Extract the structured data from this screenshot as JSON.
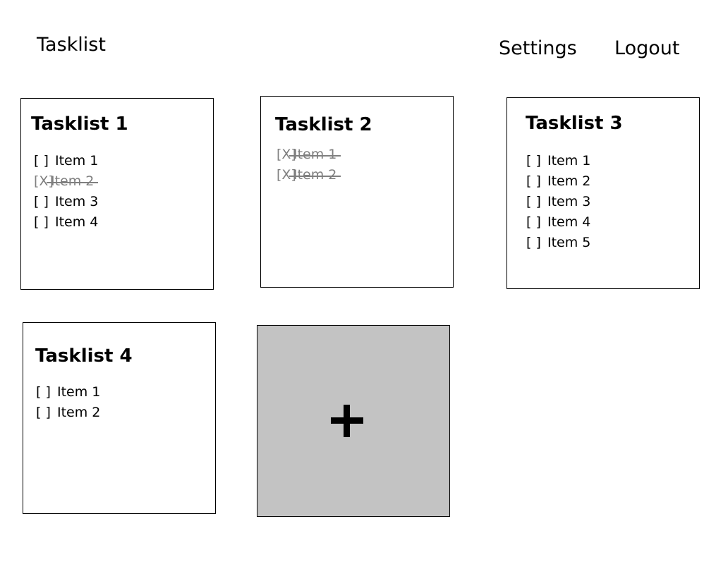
{
  "header": {
    "title": "Tasklist",
    "settings_label": "Settings",
    "logout_label": "Logout"
  },
  "tasklists": [
    {
      "title": "Tasklist 1",
      "items": [
        {
          "box": "[ ]",
          "label": "Item 1",
          "done": false
        },
        {
          "box": "[X]",
          "label": "Item 2",
          "done": true
        },
        {
          "box": "[ ]",
          "label": "Item 3",
          "done": false
        },
        {
          "box": "[ ]",
          "label": "Item 4",
          "done": false
        }
      ]
    },
    {
      "title": "Tasklist 2",
      "items": [
        {
          "box": "[X]",
          "label": "Item 1",
          "done": true
        },
        {
          "box": "[X]",
          "label": "Item 2",
          "done": true
        }
      ]
    },
    {
      "title": "Tasklist 3",
      "items": [
        {
          "box": "[ ]",
          "label": "Item 1",
          "done": false
        },
        {
          "box": "[ ]",
          "label": "Item 2",
          "done": false
        },
        {
          "box": "[ ]",
          "label": "Item 3",
          "done": false
        },
        {
          "box": "[ ]",
          "label": "Item 4",
          "done": false
        },
        {
          "box": "[ ]",
          "label": "Item 5",
          "done": false
        }
      ]
    },
    {
      "title": "Tasklist 4",
      "items": [
        {
          "box": "[ ]",
          "label": "Item 1",
          "done": false
        },
        {
          "box": "[ ]",
          "label": "Item 2",
          "done": false
        }
      ]
    }
  ],
  "add_tile": {
    "icon": "plus-icon"
  },
  "colors": {
    "done_text": "#7f7f7f",
    "add_tile_bg": "#c3c3c3",
    "border": "#000000"
  }
}
